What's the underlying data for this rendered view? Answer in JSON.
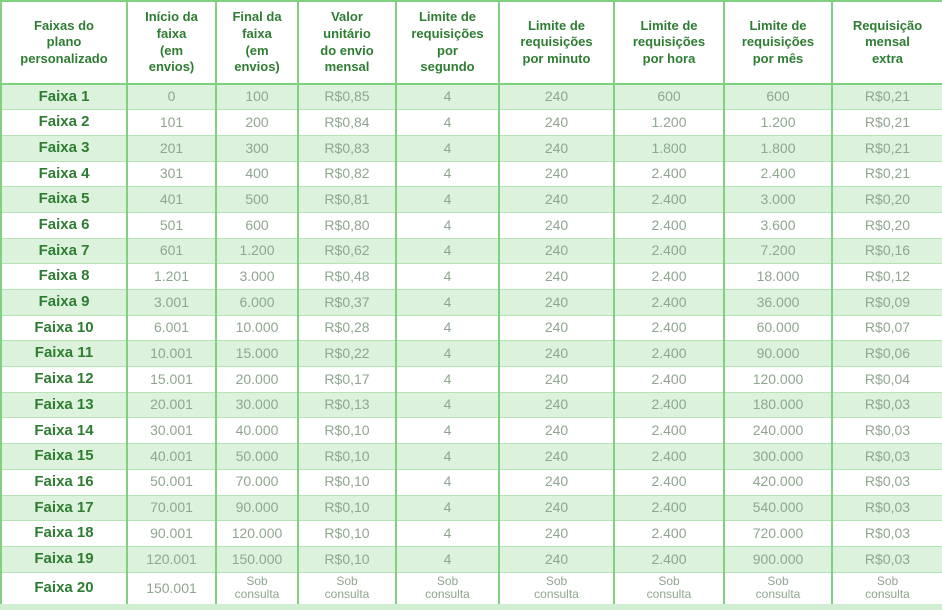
{
  "colors": {
    "header_text": "#2e7d32",
    "value_text": "#8fa68f",
    "row_green": "#dcf2dc",
    "row_white": "#ffffff",
    "border": "#7fd07f",
    "border_light": "#b5e5b5",
    "bottom_strip": "#d2eed2"
  },
  "chart_data": {
    "type": "table",
    "columns": [
      "Faixas do\nplano\npersonalizado",
      "Início da\nfaixa\n(em\nenvios)",
      "Final da\nfaixa\n(em\nenvios)",
      "Valor\nunitário\ndo envio\nmensal",
      "Limite de\nrequisições\npor\nsegundo",
      "Limite de\nrequisições\npor minuto",
      "Limite de\nrequisições\npor hora",
      "Limite de\nrequisições\npor mês",
      "Requisição\nmensal\nextra"
    ],
    "rows": [
      [
        "Faixa 1",
        "0",
        "100",
        "R$0,85",
        "4",
        "240",
        "600",
        "600",
        "R$0,21"
      ],
      [
        "Faixa 2",
        "101",
        "200",
        "R$0,84",
        "4",
        "240",
        "1.200",
        "1.200",
        "R$0,21"
      ],
      [
        "Faixa 3",
        "201",
        "300",
        "R$0,83",
        "4",
        "240",
        "1.800",
        "1.800",
        "R$0,21"
      ],
      [
        "Faixa 4",
        "301",
        "400",
        "R$0,82",
        "4",
        "240",
        "2.400",
        "2.400",
        "R$0,21"
      ],
      [
        "Faixa 5",
        "401",
        "500",
        "R$0,81",
        "4",
        "240",
        "2.400",
        "3.000",
        "R$0,20"
      ],
      [
        "Faixa 6",
        "501",
        "600",
        "R$0,80",
        "4",
        "240",
        "2.400",
        "3.600",
        "R$0,20"
      ],
      [
        "Faixa 7",
        "601",
        "1.200",
        "R$0,62",
        "4",
        "240",
        "2.400",
        "7.200",
        "R$0,16"
      ],
      [
        "Faixa 8",
        "1.201",
        "3.000",
        "R$0,48",
        "4",
        "240",
        "2.400",
        "18.000",
        "R$0,12"
      ],
      [
        "Faixa 9",
        "3.001",
        "6.000",
        "R$0,37",
        "4",
        "240",
        "2.400",
        "36.000",
        "R$0,09"
      ],
      [
        "Faixa 10",
        "6.001",
        "10.000",
        "R$0,28",
        "4",
        "240",
        "2.400",
        "60.000",
        "R$0,07"
      ],
      [
        "Faixa 11",
        "10.001",
        "15.000",
        "R$0,22",
        "4",
        "240",
        "2.400",
        "90.000",
        "R$0,06"
      ],
      [
        "Faixa 12",
        "15.001",
        "20.000",
        "R$0,17",
        "4",
        "240",
        "2.400",
        "120.000",
        "R$0,04"
      ],
      [
        "Faixa 13",
        "20.001",
        "30.000",
        "R$0,13",
        "4",
        "240",
        "2.400",
        "180.000",
        "R$0,03"
      ],
      [
        "Faixa 14",
        "30.001",
        "40.000",
        "R$0,10",
        "4",
        "240",
        "2.400",
        "240.000",
        "R$0,03"
      ],
      [
        "Faixa 15",
        "40.001",
        "50.000",
        "R$0,10",
        "4",
        "240",
        "2.400",
        "300.000",
        "R$0,03"
      ],
      [
        "Faixa 16",
        "50.001",
        "70.000",
        "R$0,10",
        "4",
        "240",
        "2.400",
        "420.000",
        "R$0,03"
      ],
      [
        "Faixa 17",
        "70.001",
        "90.000",
        "R$0,10",
        "4",
        "240",
        "2.400",
        "540.000",
        "R$0,03"
      ],
      [
        "Faixa 18",
        "90.001",
        "120.000",
        "R$0,10",
        "4",
        "240",
        "2.400",
        "720.000",
        "R$0,03"
      ],
      [
        "Faixa 19",
        "120.001",
        "150.000",
        "R$0,10",
        "4",
        "240",
        "2.400",
        "900.000",
        "R$0,03"
      ],
      [
        "Faixa 20",
        "150.001",
        "Sob\nconsulta",
        "Sob\nconsulta",
        "Sob\nconsulta",
        "Sob\nconsulta",
        "Sob\nconsulta",
        "Sob\nconsulta",
        "Sob\nconsulta"
      ]
    ]
  }
}
